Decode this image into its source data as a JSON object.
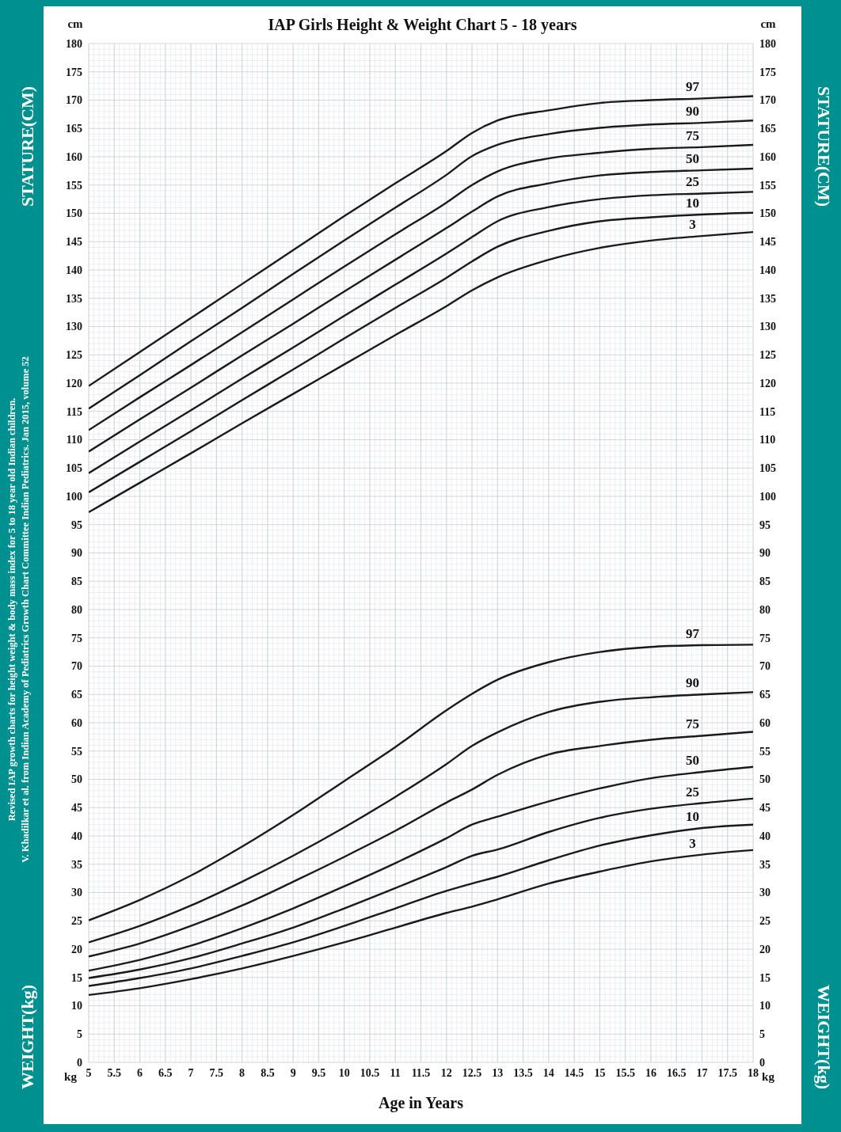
{
  "chart_data": {
    "type": "line",
    "title": "IAP Girls Height & Weight Chart 5 - 18 years",
    "xlabel": "Age in Years",
    "ylabel": "STATURE(CM)",
    "y2label": "STATURE(CM)",
    "annotations": [
      "cm",
      "cm",
      "kg",
      "kg",
      "WEIGHT(kg)",
      "WEIGHT(kg)",
      "Revised IAP growth charts for height weight & body mass index for 5 to 18 year old Indian children.",
      "V. Khadilkar et al. from Indian Academy of Pediatrics Growth Chart Committee Indian Pediatrics. Jan 2015, volume 52"
    ],
    "x": [
      5,
      6,
      7,
      8,
      9,
      10,
      11,
      12,
      12.5,
      13,
      14,
      15,
      16,
      17,
      18
    ],
    "series": [
      {
        "name": "97",
        "color": "#1a1a1a",
        "values": [
          119.5,
          125.5,
          131.5,
          137.5,
          143.5,
          149.5,
          155.3,
          161.0,
          164.2,
          166.4,
          168.2,
          169.5,
          170.0,
          170.3,
          170.7
        ]
      },
      {
        "name": "90",
        "color": "#1a1a1a",
        "values": [
          115.5,
          121.4,
          127.4,
          133.3,
          139.3,
          145.2,
          151.0,
          156.8,
          160.1,
          162.1,
          164.0,
          165.1,
          165.7,
          166.0,
          166.4
        ]
      },
      {
        "name": "75",
        "color": "#1a1a1a",
        "values": [
          111.7,
          117.5,
          123.2,
          129.0,
          134.8,
          140.6,
          146.3,
          151.9,
          155.0,
          157.4,
          159.7,
          160.7,
          161.4,
          161.7,
          162.1
        ]
      },
      {
        "name": "50",
        "color": "#1a1a1a",
        "values": [
          107.9,
          113.6,
          119.2,
          124.9,
          130.5,
          136.2,
          141.8,
          147.4,
          150.3,
          153.0,
          155.3,
          156.7,
          157.3,
          157.6,
          157.9
        ]
      },
      {
        "name": "25",
        "color": "#1a1a1a",
        "values": [
          104.1,
          109.7,
          115.2,
          120.8,
          126.3,
          131.9,
          137.4,
          142.9,
          145.8,
          148.6,
          151.1,
          152.5,
          153.2,
          153.5,
          153.8
        ]
      },
      {
        "name": "10",
        "color": "#1a1a1a",
        "values": [
          100.7,
          106.1,
          111.5,
          117.0,
          122.4,
          127.9,
          133.3,
          138.6,
          141.5,
          144.1,
          146.9,
          148.6,
          149.3,
          149.8,
          150.1
        ]
      },
      {
        "name": "3",
        "color": "#1a1a1a",
        "values": [
          97.2,
          102.4,
          107.6,
          112.9,
          118.1,
          123.3,
          128.5,
          133.6,
          136.4,
          138.7,
          141.8,
          143.9,
          145.2,
          146.0,
          146.7
        ]
      },
      {
        "name": "97",
        "color": "#1a1a1a",
        "values": [
          25.1,
          28.7,
          33.0,
          38.1,
          43.7,
          49.7,
          55.7,
          62.2,
          65.1,
          67.6,
          70.7,
          72.5,
          73.4,
          73.7,
          73.8
        ]
      },
      {
        "name": "90",
        "color": "#1a1a1a",
        "values": [
          21.2,
          24.1,
          27.7,
          31.9,
          36.5,
          41.5,
          46.9,
          52.7,
          55.9,
          58.3,
          61.9,
          63.7,
          64.5,
          65.0,
          65.4
        ]
      },
      {
        "name": "75",
        "color": "#1a1a1a",
        "values": [
          18.7,
          21.0,
          24.1,
          27.7,
          31.9,
          36.3,
          40.9,
          45.9,
          48.2,
          50.8,
          54.4,
          55.9,
          57.0,
          57.7,
          58.4
        ]
      },
      {
        "name": "50",
        "color": "#1a1a1a",
        "values": [
          16.2,
          18.1,
          20.6,
          23.7,
          27.2,
          31.1,
          35.2,
          39.6,
          42.0,
          43.4,
          46.1,
          48.4,
          50.2,
          51.3,
          52.2
        ]
      },
      {
        "name": "25",
        "color": "#1a1a1a",
        "values": [
          14.9,
          16.4,
          18.4,
          21.0,
          23.8,
          27.2,
          30.8,
          34.5,
          36.5,
          37.6,
          40.7,
          43.2,
          44.8,
          45.8,
          46.6
        ]
      },
      {
        "name": "10",
        "color": "#1a1a1a",
        "values": [
          13.5,
          14.9,
          16.6,
          18.8,
          21.2,
          24.1,
          27.2,
          30.3,
          31.6,
          32.8,
          35.7,
          38.3,
          40.1,
          41.4,
          42.0
        ]
      },
      {
        "name": "3",
        "color": "#1a1a1a",
        "values": [
          11.9,
          13.1,
          14.7,
          16.6,
          18.8,
          21.2,
          23.8,
          26.4,
          27.5,
          28.8,
          31.6,
          33.7,
          35.5,
          36.7,
          37.5
        ]
      }
    ],
    "xlim": [
      5,
      18
    ],
    "xticks": [
      5,
      5.5,
      6,
      6.5,
      7,
      7.5,
      8,
      8.5,
      9,
      9.5,
      10,
      10.5,
      11,
      11.5,
      12,
      12.5,
      13,
      13.5,
      14,
      14.5,
      15,
      15.5,
      16,
      16.5,
      17,
      17.5,
      18
    ],
    "ylim": [
      0,
      180
    ],
    "yticks": [
      0,
      5,
      10,
      15,
      20,
      25,
      30,
      35,
      40,
      45,
      50,
      55,
      60,
      65,
      70,
      75,
      80,
      85,
      90,
      95,
      100,
      105,
      110,
      115,
      120,
      125,
      130,
      135,
      140,
      145,
      150,
      155,
      160,
      165,
      170,
      175,
      180
    ],
    "y2lim": [
      0,
      180
    ],
    "y2ticks": [
      0,
      5,
      10,
      15,
      20,
      25,
      30,
      35,
      40,
      45,
      50,
      55,
      60,
      65,
      70,
      75,
      80,
      85,
      90,
      95,
      100,
      105,
      110,
      115,
      120,
      125,
      130,
      135,
      140,
      145,
      150,
      155,
      160,
      165,
      170,
      175,
      180
    ],
    "grid": true
  }
}
